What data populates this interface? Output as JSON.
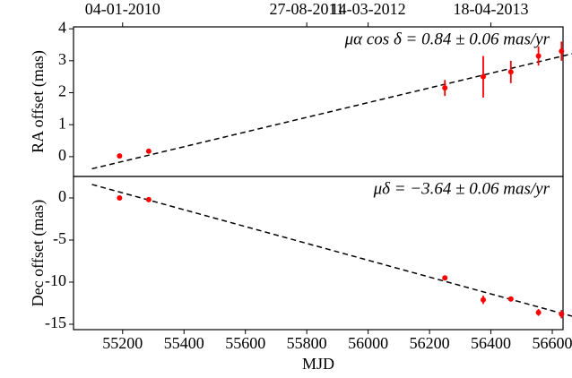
{
  "chart_data": [
    {
      "type": "scatter",
      "ylabel": "RA offset (mas)",
      "annotation": "μα cos δ = 0.84 ± 0.06 mas/yr",
      "x": [
        55190,
        55285,
        56250,
        56375,
        56465,
        56555,
        56630
      ],
      "values": [
        0.02,
        0.17,
        2.15,
        2.5,
        2.65,
        3.15,
        3.3
      ],
      "errors": [
        0.08,
        0.05,
        0.25,
        0.65,
        0.35,
        0.3,
        0.3
      ],
      "color": "#ff0000",
      "fit": {
        "x": [
          55100,
          56700
        ],
        "values": [
          -0.38,
          3.3
        ]
      },
      "xlim": [
        55040,
        56635
      ],
      "ylim": [
        -0.62,
        4.06
      ],
      "yticks": [
        0,
        1,
        2,
        3,
        4
      ],
      "x2ticks": [
        {
          "value": 55200,
          "label": "04-01-2010"
        },
        {
          "value": 55800,
          "label": "27-08-2011"
        },
        {
          "value": 56000,
          "label": "14-03-2012"
        },
        {
          "value": 56400,
          "label": "18-04-2013"
        }
      ]
    },
    {
      "type": "scatter",
      "ylabel": "Dec offset (mas)",
      "xlabel": "MJD",
      "annotation": "μδ = −3.64 ± 0.06 mas/yr",
      "x": [
        55190,
        55285,
        56250,
        56375,
        56465,
        56555,
        56630
      ],
      "values": [
        0.0,
        -0.2,
        -9.5,
        -12.1,
        -12.0,
        -13.6,
        -13.8
      ],
      "errors": [
        0.1,
        0.1,
        0.3,
        0.5,
        0.3,
        0.4,
        0.5
      ],
      "color": "#ff0000",
      "fit": {
        "x": [
          55100,
          56700
        ],
        "values": [
          1.6,
          -14.4
        ]
      },
      "xlim": [
        55040,
        56635
      ],
      "ylim": [
        -15.64,
        2.55
      ],
      "yticks": [
        0,
        -5,
        -10,
        -15
      ],
      "xticks": [
        55200,
        55400,
        55600,
        55800,
        56000,
        56200,
        56400,
        56600
      ]
    }
  ]
}
